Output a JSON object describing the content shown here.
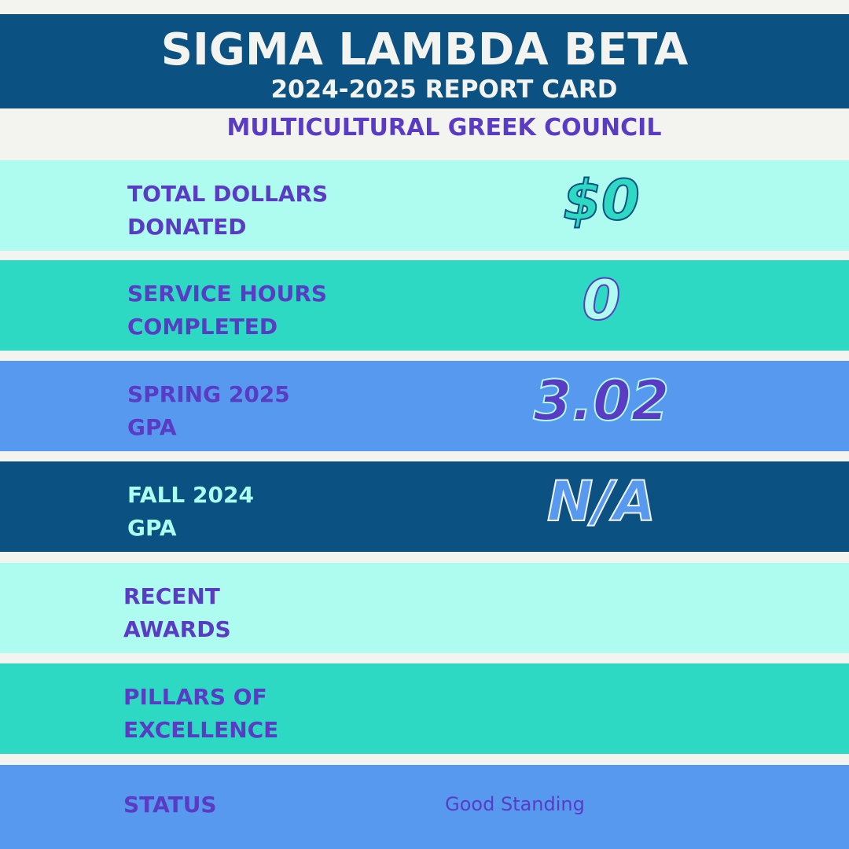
{
  "header": {
    "title": "SIGMA LAMBDA BETA",
    "subtitle": "2024-2025 REPORT CARD",
    "council": "MULTICULTURAL GREEK COUNCIL"
  },
  "rows": [
    {
      "label": [
        "TOTAL DOLLARS",
        "DONATED"
      ],
      "value": "$0"
    },
    {
      "label": [
        "SERVICE HOURS",
        "COMPLETED"
      ],
      "value": "0"
    },
    {
      "label": [
        "SPRING 2025",
        "GPA"
      ],
      "value": "3.02"
    },
    {
      "label": [
        "FALL 2024",
        "GPA"
      ],
      "value": "N/A"
    },
    {
      "label": [
        "RECENT",
        "AWARDS"
      ],
      "value": null
    },
    {
      "label": [
        "PILLARS OF",
        "EXCELLENCE"
      ],
      "value": null
    },
    {
      "label": [
        "STATUS"
      ],
      "value": "Good Standing"
    }
  ]
}
